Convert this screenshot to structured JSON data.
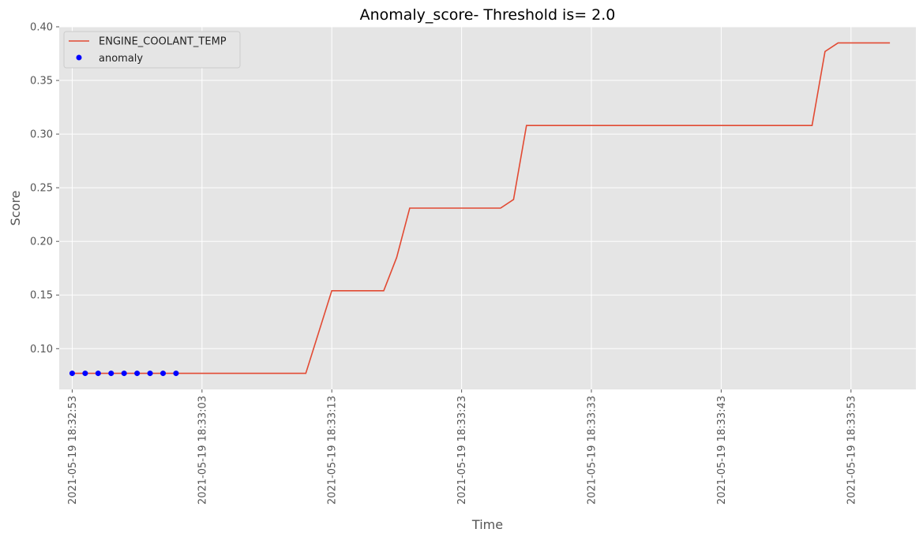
{
  "chart_data": {
    "type": "line",
    "title": "Anomaly_score- Threshold is= 2.0",
    "xlabel": "Time",
    "ylabel": "Score",
    "xlim": [
      "2021-05-19 18:32:52",
      "2021-05-19 18:33:58"
    ],
    "ylim": [
      0.062,
      0.4
    ],
    "x_ticks": [
      "2021-05-19 18:32:53",
      "2021-05-19 18:33:03",
      "2021-05-19 18:33:13",
      "2021-05-19 18:33:23",
      "2021-05-19 18:33:33",
      "2021-05-19 18:33:43",
      "2021-05-19 18:33:53"
    ],
    "y_ticks": [
      "0.10",
      "0.15",
      "0.20",
      "0.25",
      "0.30",
      "0.35",
      "0.40"
    ],
    "grid": true,
    "background": "#e5e5e5",
    "legend": {
      "placement": "top-left",
      "entries": [
        "ENGINE_COOLANT_TEMP",
        "anomaly"
      ]
    },
    "series": [
      {
        "name": "ENGINE_COOLANT_TEMP",
        "kind": "line",
        "color": "#e24a33",
        "points": [
          [
            "2021-05-19 18:32:53",
            0.077
          ],
          [
            "2021-05-19 18:33:11",
            0.077
          ],
          [
            "2021-05-19 18:33:13",
            0.154
          ],
          [
            "2021-05-19 18:33:17",
            0.154
          ],
          [
            "2021-05-19 18:33:18",
            0.185
          ],
          [
            "2021-05-19 18:33:19",
            0.231
          ],
          [
            "2021-05-19 18:33:26",
            0.231
          ],
          [
            "2021-05-19 18:33:27",
            0.239
          ],
          [
            "2021-05-19 18:33:28",
            0.308
          ],
          [
            "2021-05-19 18:33:50",
            0.308
          ],
          [
            "2021-05-19 18:33:51",
            0.377
          ],
          [
            "2021-05-19 18:33:52",
            0.385
          ],
          [
            "2021-05-19 18:33:56",
            0.385
          ]
        ]
      },
      {
        "name": "anomaly",
        "kind": "scatter",
        "color": "#0000ff",
        "points": [
          [
            "2021-05-19 18:32:53",
            0.077
          ],
          [
            "2021-05-19 18:32:54",
            0.077
          ],
          [
            "2021-05-19 18:32:55",
            0.077
          ],
          [
            "2021-05-19 18:32:56",
            0.077
          ],
          [
            "2021-05-19 18:32:57",
            0.077
          ],
          [
            "2021-05-19 18:32:58",
            0.077
          ],
          [
            "2021-05-19 18:32:59",
            0.077
          ],
          [
            "2021-05-19 18:33:00",
            0.077
          ],
          [
            "2021-05-19 18:33:01",
            0.077
          ]
        ]
      }
    ]
  }
}
